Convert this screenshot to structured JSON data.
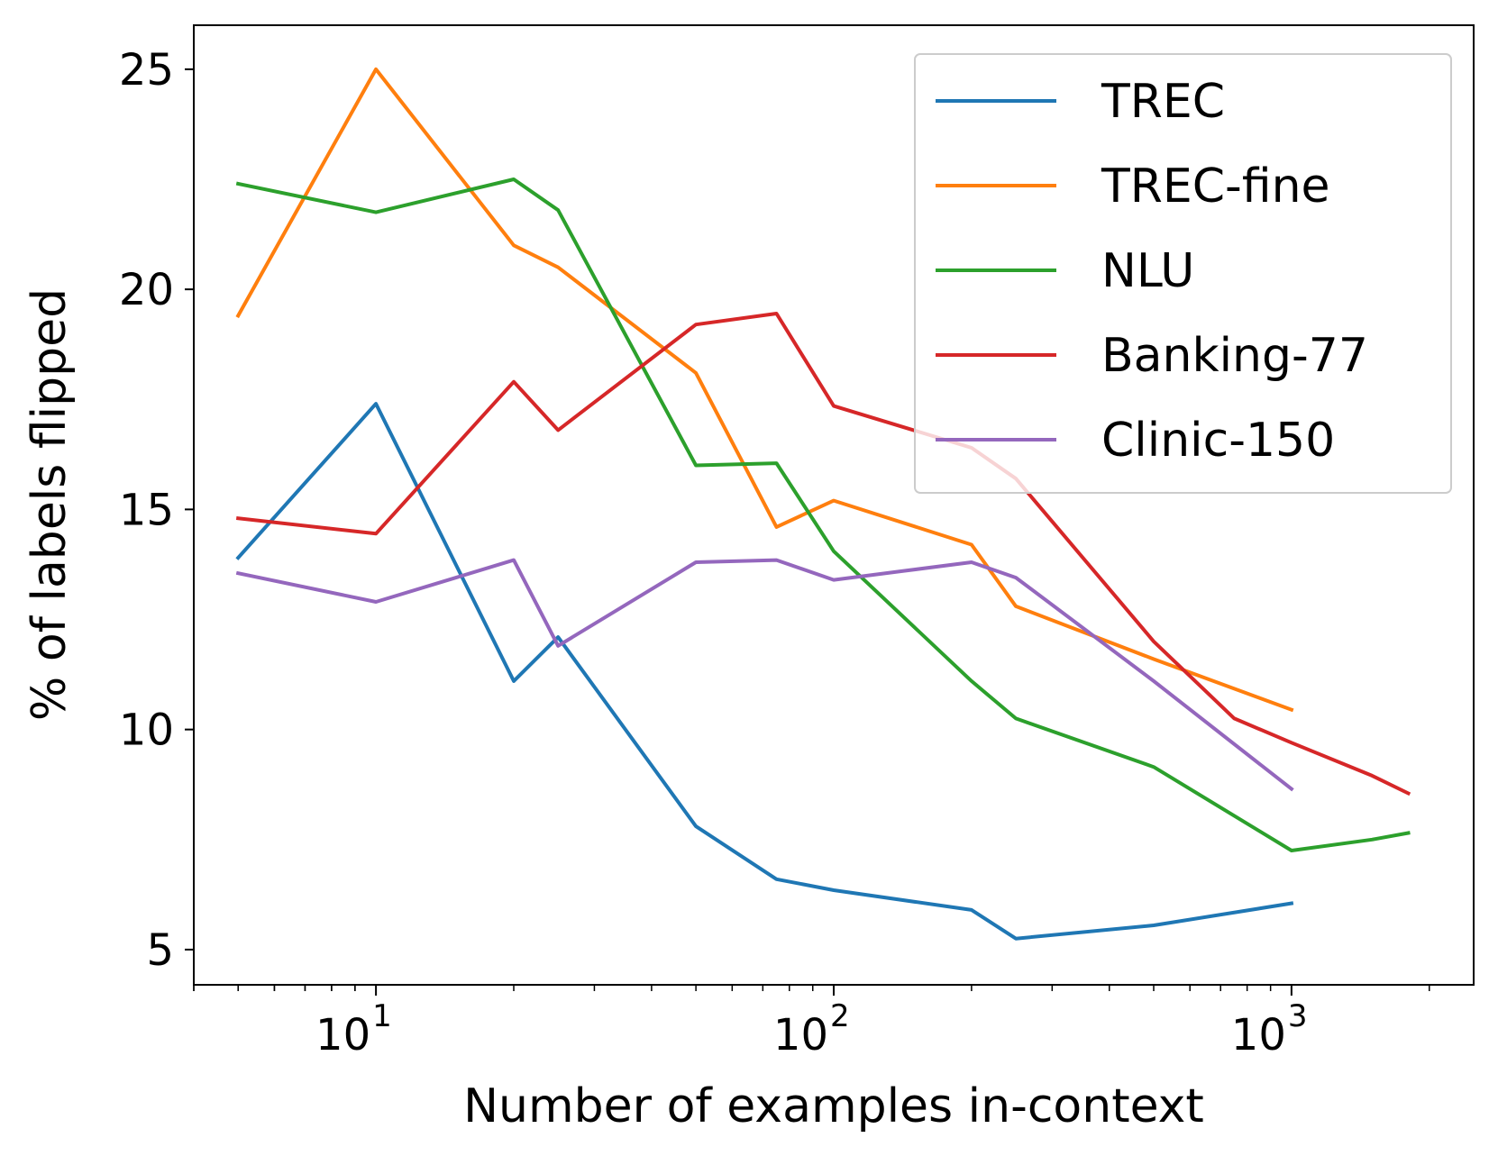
{
  "chart_data": {
    "type": "line",
    "title": "",
    "xlabel": "Number of examples in-context",
    "ylabel": "% of labels flipped",
    "xscale": "log",
    "xlim": [
      4,
      2500
    ],
    "ylim": [
      4.2,
      26
    ],
    "grid": false,
    "legend_position": "top-right",
    "x_ticks": [
      {
        "value": 10,
        "base": "10",
        "exp": "1"
      },
      {
        "value": 100,
        "base": "10",
        "exp": "2"
      },
      {
        "value": 1000,
        "base": "10",
        "exp": "3"
      }
    ],
    "y_ticks": [
      {
        "value": 5,
        "label": "5"
      },
      {
        "value": 10,
        "label": "10"
      },
      {
        "value": 15,
        "label": "15"
      },
      {
        "value": 20,
        "label": "20"
      },
      {
        "value": 25,
        "label": "25"
      }
    ],
    "series": [
      {
        "name": "TREC",
        "color": "#1f77b4",
        "x": [
          5,
          10,
          20,
          25,
          50,
          75,
          100,
          200,
          250,
          500,
          1000
        ],
        "y": [
          13.9,
          17.4,
          11.1,
          12.1,
          7.8,
          6.6,
          6.35,
          5.9,
          5.25,
          5.55,
          6.05
        ]
      },
      {
        "name": "TREC-fine",
        "color": "#ff7f0e",
        "x": [
          5,
          10,
          20,
          25,
          50,
          75,
          100,
          200,
          250,
          500,
          1000
        ],
        "y": [
          19.4,
          25.0,
          21.0,
          20.5,
          18.1,
          14.6,
          15.2,
          14.2,
          12.8,
          11.6,
          10.45
        ]
      },
      {
        "name": "NLU",
        "color": "#2ca02c",
        "x": [
          5,
          10,
          20,
          25,
          50,
          75,
          100,
          200,
          250,
          500,
          1000,
          1500,
          1800
        ],
        "y": [
          22.4,
          21.75,
          22.5,
          21.8,
          16.0,
          16.05,
          14.05,
          11.1,
          10.25,
          9.15,
          7.25,
          7.5,
          7.65
        ]
      },
      {
        "name": "Banking-77",
        "color": "#d62728",
        "x": [
          5,
          10,
          20,
          25,
          50,
          75,
          100,
          200,
          250,
          500,
          750,
          1000,
          1500,
          1800
        ],
        "y": [
          14.8,
          14.45,
          17.9,
          16.8,
          19.2,
          19.45,
          17.35,
          16.4,
          15.7,
          12.0,
          10.25,
          9.7,
          8.95,
          8.55
        ]
      },
      {
        "name": "Clinic-150",
        "color": "#9467bd",
        "x": [
          5,
          10,
          20,
          25,
          50,
          75,
          100,
          200,
          250,
          500,
          1000
        ],
        "y": [
          13.55,
          12.9,
          13.85,
          11.9,
          13.8,
          13.85,
          13.4,
          13.8,
          13.45,
          11.1,
          8.65
        ]
      }
    ]
  }
}
